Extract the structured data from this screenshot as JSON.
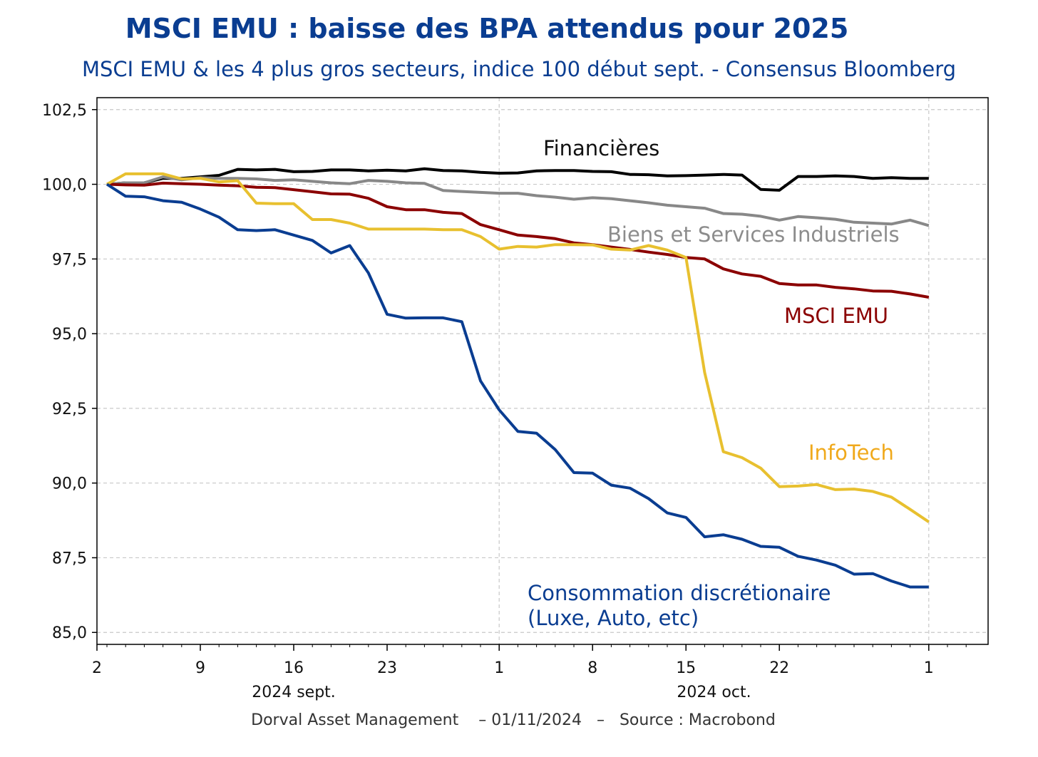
{
  "title": "MSCI EMU : baisse des BPA attendus pour 2025",
  "subtitle": "MSCI EMU & les 4 plus gros secteurs, indice 100 début sept. - Consensus Bloomberg",
  "footer": "Dorval Asset Management    – 01/11/2024   –   Source : Macrobond",
  "chart_data": {
    "type": "line",
    "x_unit": "trading day index from 2024-09-02",
    "x_ticks": [
      {
        "label": "2",
        "x": 0
      },
      {
        "label": "9",
        "x": 5
      },
      {
        "label": "16",
        "x": 10
      },
      {
        "label": "23",
        "x": 15
      },
      {
        "label": "1",
        "x": 21
      },
      {
        "label": "8",
        "x": 26
      },
      {
        "label": "15",
        "x": 31
      },
      {
        "label": "22",
        "x": 36
      },
      {
        "label": "1",
        "x": 44
      }
    ],
    "x_month_labels": [
      {
        "label": "2024 sept.",
        "x": 10
      },
      {
        "label": "2024 oct.",
        "x": 32.5
      }
    ],
    "xlim": [
      0,
      47
    ],
    "ylim": [
      84.6,
      102.9
    ],
    "y_ticks": [
      "102,5",
      "100,0",
      "97,5",
      "95,0",
      "92,5",
      "90,0",
      "87,5",
      "85,0"
    ],
    "y_tick_values": [
      102.5,
      100,
      97.5,
      95,
      92.5,
      90,
      87.5,
      85
    ],
    "grid": true,
    "series": [
      {
        "name": "Financières",
        "color": "#000000",
        "values": [
          100.0,
          100.05,
          100.05,
          100.2,
          100.2,
          100.25,
          100.3,
          100.5,
          100.48,
          100.5,
          100.42,
          100.43,
          100.48,
          100.48,
          100.45,
          100.47,
          100.45,
          100.52,
          100.46,
          100.45,
          100.4,
          100.37,
          100.38,
          100.45,
          100.46,
          100.46,
          100.43,
          100.42,
          100.33,
          100.32,
          100.28,
          100.29,
          100.31,
          100.33,
          100.31,
          99.83,
          99.8,
          100.26,
          100.26,
          100.28,
          100.26,
          100.2,
          100.22,
          100.2,
          100.2
        ]
      },
      {
        "name": "Biens et Services Industriels",
        "color": "#888888",
        "values": [
          100.0,
          100.05,
          100.05,
          100.25,
          100.15,
          100.22,
          100.2,
          100.2,
          100.18,
          100.13,
          100.15,
          100.1,
          100.05,
          100.02,
          100.13,
          100.1,
          100.05,
          100.03,
          99.79,
          99.76,
          99.73,
          99.7,
          99.7,
          99.62,
          99.57,
          99.5,
          99.55,
          99.52,
          99.45,
          99.38,
          99.3,
          99.25,
          99.2,
          99.02,
          99.0,
          98.93,
          98.8,
          98.92,
          98.88,
          98.83,
          98.73,
          98.7,
          98.67,
          98.8,
          98.62
        ]
      },
      {
        "name": "MSCI EMU",
        "color": "#8b0000",
        "values": [
          100.0,
          99.98,
          99.97,
          100.04,
          100.02,
          100.0,
          99.97,
          99.95,
          99.9,
          99.89,
          99.82,
          99.75,
          99.68,
          99.67,
          99.53,
          99.25,
          99.15,
          99.15,
          99.06,
          99.02,
          98.65,
          98.48,
          98.3,
          98.25,
          98.18,
          98.04,
          97.98,
          97.9,
          97.82,
          97.73,
          97.65,
          97.55,
          97.5,
          97.17,
          97.0,
          96.92,
          96.68,
          96.63,
          96.63,
          96.55,
          96.5,
          96.43,
          96.42,
          96.33,
          96.22
        ]
      },
      {
        "name": "InfoTech",
        "color": "#e8c02f",
        "values": [
          100.0,
          100.35,
          100.35,
          100.35,
          100.18,
          100.2,
          100.08,
          100.12,
          99.37,
          99.35,
          99.35,
          98.82,
          98.82,
          98.7,
          98.5,
          98.5,
          98.5,
          98.5,
          98.48,
          98.48,
          98.25,
          97.83,
          97.92,
          97.9,
          97.98,
          97.98,
          97.97,
          97.83,
          97.8,
          97.95,
          97.8,
          97.55,
          93.7,
          91.05,
          90.85,
          90.5,
          89.88,
          89.9,
          89.95,
          89.78,
          89.8,
          89.72,
          89.53,
          89.12,
          88.7
        ]
      },
      {
        "name": "Consommation discrétionaire",
        "color": "#0a3d91",
        "values": [
          100.0,
          99.6,
          99.58,
          99.45,
          99.4,
          99.17,
          98.9,
          98.48,
          98.45,
          98.48,
          98.3,
          98.12,
          97.7,
          97.95,
          97.03,
          95.65,
          95.52,
          95.53,
          95.53,
          95.4,
          93.42,
          92.45,
          91.73,
          91.67,
          91.12,
          90.35,
          90.33,
          89.93,
          89.83,
          89.48,
          89.0,
          88.85,
          88.2,
          88.27,
          88.12,
          87.88,
          87.85,
          87.55,
          87.42,
          87.25,
          86.95,
          86.97,
          86.72,
          86.52,
          86.52
        ]
      }
    ]
  },
  "annotations": {
    "financieres": {
      "text": "Financières",
      "color": "#111111"
    },
    "biens": {
      "text": "Biens et Services Industriels",
      "color": "#8c8c8c"
    },
    "msci": {
      "text": "MSCI EMU",
      "color": "#8b0000"
    },
    "infotech": {
      "text": "InfoTech",
      "color": "#f0a91b"
    },
    "conso_line1": {
      "text": "Consommation discrétionaire",
      "color": "#0a3d91"
    },
    "conso_line2": {
      "text": "(Luxe, Auto, etc)",
      "color": "#0a3d91"
    }
  }
}
